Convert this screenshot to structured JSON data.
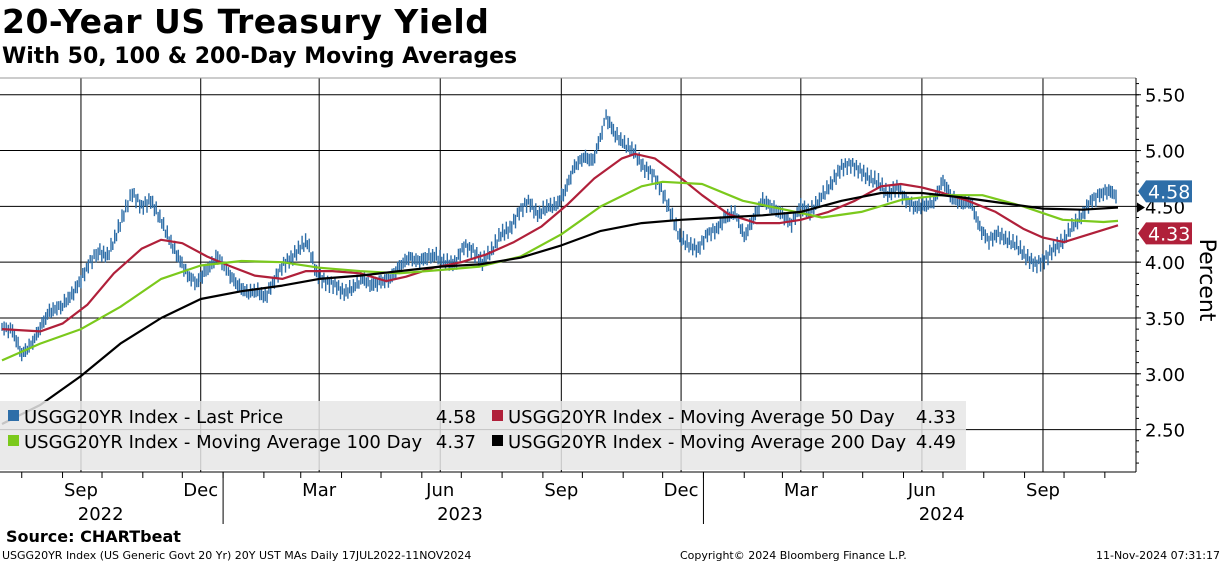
{
  "chart_data": {
    "type": "line",
    "title": "20-Year US Treasury Yield",
    "subtitle": "With 50, 100 & 200-Day Moving Averages",
    "ylabel": "Percent",
    "ylim": [
      2.12,
      5.65
    ],
    "yticks": [
      "2.50",
      "3.00",
      "3.50",
      "4.00",
      "4.50",
      "5.00",
      "5.50"
    ],
    "x_range": [
      "2022-07-17",
      "2024-11-11"
    ],
    "month_ticks": [
      {
        "label": "Sep",
        "date": "2022-09-15"
      },
      {
        "label": "Dec",
        "date": "2022-12-15"
      },
      {
        "label": "Mar",
        "date": "2023-03-15"
      },
      {
        "label": "Jun",
        "date": "2023-06-15"
      },
      {
        "label": "Sep",
        "date": "2023-09-15"
      },
      {
        "label": "Dec",
        "date": "2023-12-15"
      },
      {
        "label": "Mar",
        "date": "2024-03-15"
      },
      {
        "label": "Jun",
        "date": "2024-06-15"
      },
      {
        "label": "Sep",
        "date": "2024-09-15"
      }
    ],
    "years": [
      {
        "label": "2022",
        "date": "2022-09-30"
      },
      {
        "label": "2023",
        "date": "2023-06-30"
      },
      {
        "label": "2024",
        "date": "2024-06-30"
      }
    ],
    "year_boundaries": [
      "2023-01-01",
      "2024-01-01"
    ],
    "gridlines": true,
    "legend_position": "bottom-left",
    "series": [
      {
        "name": "USGG20YR Index - Last Price",
        "legend_value": "4.58",
        "color": "#2e6ea8",
        "style": "bar-high-low",
        "points": [
          [
            "2022-07-17",
            3.42
          ],
          [
            "2022-07-25",
            3.38
          ],
          [
            "2022-08-01",
            3.18
          ],
          [
            "2022-08-08",
            3.25
          ],
          [
            "2022-08-15",
            3.42
          ],
          [
            "2022-08-22",
            3.55
          ],
          [
            "2022-09-01",
            3.62
          ],
          [
            "2022-09-08",
            3.7
          ],
          [
            "2022-09-15",
            3.85
          ],
          [
            "2022-09-22",
            4.0
          ],
          [
            "2022-09-28",
            4.1
          ],
          [
            "2022-10-05",
            4.05
          ],
          [
            "2022-10-12",
            4.25
          ],
          [
            "2022-10-19",
            4.48
          ],
          [
            "2022-10-24",
            4.62
          ],
          [
            "2022-10-31",
            4.5
          ],
          [
            "2022-11-07",
            4.55
          ],
          [
            "2022-11-14",
            4.4
          ],
          [
            "2022-11-21",
            4.2
          ],
          [
            "2022-11-28",
            4.05
          ],
          [
            "2022-12-05",
            3.88
          ],
          [
            "2022-12-12",
            3.82
          ],
          [
            "2022-12-19",
            3.92
          ],
          [
            "2022-12-28",
            4.05
          ],
          [
            "2023-01-05",
            3.9
          ],
          [
            "2023-01-12",
            3.8
          ],
          [
            "2023-01-19",
            3.72
          ],
          [
            "2023-01-26",
            3.75
          ],
          [
            "2023-02-02",
            3.68
          ],
          [
            "2023-02-09",
            3.85
          ],
          [
            "2023-02-16",
            3.98
          ],
          [
            "2023-02-23",
            4.05
          ],
          [
            "2023-03-02",
            4.15
          ],
          [
            "2023-03-06",
            4.18
          ],
          [
            "2023-03-13",
            3.9
          ],
          [
            "2023-03-20",
            3.82
          ],
          [
            "2023-03-27",
            3.8
          ],
          [
            "2023-04-03",
            3.72
          ],
          [
            "2023-04-10",
            3.78
          ],
          [
            "2023-04-17",
            3.85
          ],
          [
            "2023-04-24",
            3.8
          ],
          [
            "2023-05-01",
            3.82
          ],
          [
            "2023-05-08",
            3.86
          ],
          [
            "2023-05-15",
            3.95
          ],
          [
            "2023-05-22",
            4.05
          ],
          [
            "2023-05-29",
            4.0
          ],
          [
            "2023-06-05",
            4.05
          ],
          [
            "2023-06-12",
            4.05
          ],
          [
            "2023-06-19",
            4.0
          ],
          [
            "2023-06-26",
            3.98
          ],
          [
            "2023-07-03",
            4.15
          ],
          [
            "2023-07-10",
            4.1
          ],
          [
            "2023-07-17",
            4.0
          ],
          [
            "2023-07-24",
            4.1
          ],
          [
            "2023-07-31",
            4.25
          ],
          [
            "2023-08-07",
            4.3
          ],
          [
            "2023-08-14",
            4.45
          ],
          [
            "2023-08-21",
            4.55
          ],
          [
            "2023-08-28",
            4.42
          ],
          [
            "2023-09-04",
            4.5
          ],
          [
            "2023-09-11",
            4.5
          ],
          [
            "2023-09-18",
            4.65
          ],
          [
            "2023-09-25",
            4.85
          ],
          [
            "2023-10-02",
            4.95
          ],
          [
            "2023-10-09",
            4.9
          ],
          [
            "2023-10-16",
            5.18
          ],
          [
            "2023-10-19",
            5.3
          ],
          [
            "2023-10-26",
            5.15
          ],
          [
            "2023-11-02",
            5.05
          ],
          [
            "2023-11-09",
            5.0
          ],
          [
            "2023-11-16",
            4.85
          ],
          [
            "2023-11-23",
            4.8
          ],
          [
            "2023-11-30",
            4.65
          ],
          [
            "2023-12-07",
            4.45
          ],
          [
            "2023-12-14",
            4.22
          ],
          [
            "2023-12-21",
            4.15
          ],
          [
            "2023-12-28",
            4.12
          ],
          [
            "2024-01-04",
            4.25
          ],
          [
            "2024-01-11",
            4.3
          ],
          [
            "2024-01-18",
            4.4
          ],
          [
            "2024-01-25",
            4.45
          ],
          [
            "2024-02-01",
            4.22
          ],
          [
            "2024-02-08",
            4.4
          ],
          [
            "2024-02-15",
            4.55
          ],
          [
            "2024-02-22",
            4.5
          ],
          [
            "2024-03-01",
            4.42
          ],
          [
            "2024-03-08",
            4.35
          ],
          [
            "2024-03-15",
            4.5
          ],
          [
            "2024-03-22",
            4.45
          ],
          [
            "2024-04-01",
            4.6
          ],
          [
            "2024-04-08",
            4.72
          ],
          [
            "2024-04-15",
            4.85
          ],
          [
            "2024-04-22",
            4.88
          ],
          [
            "2024-04-29",
            4.82
          ],
          [
            "2024-05-06",
            4.75
          ],
          [
            "2024-05-13",
            4.72
          ],
          [
            "2024-05-20",
            4.6
          ],
          [
            "2024-05-27",
            4.68
          ],
          [
            "2024-06-03",
            4.55
          ],
          [
            "2024-06-10",
            4.5
          ],
          [
            "2024-06-17",
            4.5
          ],
          [
            "2024-06-24",
            4.55
          ],
          [
            "2024-07-01",
            4.72
          ],
          [
            "2024-07-08",
            4.58
          ],
          [
            "2024-07-15",
            4.52
          ],
          [
            "2024-07-22",
            4.55
          ],
          [
            "2024-07-29",
            4.3
          ],
          [
            "2024-08-05",
            4.2
          ],
          [
            "2024-08-12",
            4.25
          ],
          [
            "2024-08-19",
            4.2
          ],
          [
            "2024-08-26",
            4.15
          ],
          [
            "2024-09-02",
            4.05
          ],
          [
            "2024-09-09",
            3.98
          ],
          [
            "2024-09-16",
            4.02
          ],
          [
            "2024-09-23",
            4.12
          ],
          [
            "2024-09-30",
            4.18
          ],
          [
            "2024-10-07",
            4.32
          ],
          [
            "2024-10-14",
            4.4
          ],
          [
            "2024-10-21",
            4.55
          ],
          [
            "2024-10-28",
            4.6
          ],
          [
            "2024-11-04",
            4.65
          ],
          [
            "2024-11-08",
            4.6
          ],
          [
            "2024-11-11",
            4.58
          ]
        ]
      },
      {
        "name": "USGG20YR Index - Moving Average 50 Day",
        "legend_value": "4.33",
        "color": "#b0203a",
        "points": [
          [
            "2022-07-17",
            3.4
          ],
          [
            "2022-08-15",
            3.38
          ],
          [
            "2022-09-01",
            3.45
          ],
          [
            "2022-09-20",
            3.62
          ],
          [
            "2022-10-10",
            3.9
          ],
          [
            "2022-10-31",
            4.12
          ],
          [
            "2022-11-15",
            4.2
          ],
          [
            "2022-12-01",
            4.17
          ],
          [
            "2022-12-20",
            4.05
          ],
          [
            "2023-01-05",
            3.97
          ],
          [
            "2023-01-25",
            3.88
          ],
          [
            "2023-02-15",
            3.85
          ],
          [
            "2023-03-05",
            3.92
          ],
          [
            "2023-03-25",
            3.92
          ],
          [
            "2023-04-15",
            3.9
          ],
          [
            "2023-05-05",
            3.83
          ],
          [
            "2023-05-20",
            3.87
          ],
          [
            "2023-06-10",
            3.95
          ],
          [
            "2023-07-01",
            4.0
          ],
          [
            "2023-07-20",
            4.07
          ],
          [
            "2023-08-10",
            4.18
          ],
          [
            "2023-08-31",
            4.32
          ],
          [
            "2023-09-20",
            4.52
          ],
          [
            "2023-10-10",
            4.75
          ],
          [
            "2023-10-31",
            4.93
          ],
          [
            "2023-11-10",
            4.97
          ],
          [
            "2023-11-25",
            4.93
          ],
          [
            "2023-12-10",
            4.8
          ],
          [
            "2023-12-31",
            4.6
          ],
          [
            "2024-01-20",
            4.43
          ],
          [
            "2024-02-10",
            4.35
          ],
          [
            "2024-02-28",
            4.35
          ],
          [
            "2024-03-15",
            4.38
          ],
          [
            "2024-04-05",
            4.45
          ],
          [
            "2024-04-25",
            4.55
          ],
          [
            "2024-05-15",
            4.68
          ],
          [
            "2024-05-30",
            4.7
          ],
          [
            "2024-06-15",
            4.67
          ],
          [
            "2024-07-01",
            4.62
          ],
          [
            "2024-07-20",
            4.55
          ],
          [
            "2024-08-10",
            4.45
          ],
          [
            "2024-08-31",
            4.3
          ],
          [
            "2024-09-15",
            4.22
          ],
          [
            "2024-10-01",
            4.18
          ],
          [
            "2024-10-20",
            4.25
          ],
          [
            "2024-11-11",
            4.33
          ]
        ]
      },
      {
        "name": "USGG20YR Index - Moving Average 100 Day",
        "legend_value": "4.37",
        "color": "#7bc91c",
        "points": [
          [
            "2022-07-17",
            3.12
          ],
          [
            "2022-08-15",
            3.27
          ],
          [
            "2022-09-15",
            3.4
          ],
          [
            "2022-10-15",
            3.6
          ],
          [
            "2022-11-15",
            3.85
          ],
          [
            "2022-12-15",
            3.97
          ],
          [
            "2023-01-15",
            4.01
          ],
          [
            "2023-02-15",
            4.0
          ],
          [
            "2023-03-15",
            3.95
          ],
          [
            "2023-04-15",
            3.92
          ],
          [
            "2023-05-15",
            3.9
          ],
          [
            "2023-06-15",
            3.93
          ],
          [
            "2023-07-15",
            3.96
          ],
          [
            "2023-08-15",
            4.05
          ],
          [
            "2023-09-15",
            4.25
          ],
          [
            "2023-10-15",
            4.5
          ],
          [
            "2023-11-15",
            4.68
          ],
          [
            "2023-12-01",
            4.72
          ],
          [
            "2023-12-31",
            4.7
          ],
          [
            "2024-01-31",
            4.55
          ],
          [
            "2024-02-28",
            4.48
          ],
          [
            "2024-03-31",
            4.4
          ],
          [
            "2024-04-30",
            4.45
          ],
          [
            "2024-05-31",
            4.56
          ],
          [
            "2024-06-30",
            4.6
          ],
          [
            "2024-07-31",
            4.6
          ],
          [
            "2024-08-31",
            4.5
          ],
          [
            "2024-09-30",
            4.38
          ],
          [
            "2024-10-31",
            4.36
          ],
          [
            "2024-11-11",
            4.37
          ]
        ]
      },
      {
        "name": "USGG20YR Index - Moving Average 200 Day",
        "legend_value": "4.49",
        "color": "#000000",
        "points": [
          [
            "2022-07-17",
            2.55
          ],
          [
            "2022-08-15",
            2.72
          ],
          [
            "2022-09-15",
            2.98
          ],
          [
            "2022-10-15",
            3.27
          ],
          [
            "2022-11-15",
            3.5
          ],
          [
            "2022-12-15",
            3.67
          ],
          [
            "2023-01-15",
            3.74
          ],
          [
            "2023-02-15",
            3.79
          ],
          [
            "2023-03-15",
            3.85
          ],
          [
            "2023-04-15",
            3.88
          ],
          [
            "2023-05-15",
            3.92
          ],
          [
            "2023-06-15",
            3.96
          ],
          [
            "2023-07-15",
            3.98
          ],
          [
            "2023-08-15",
            4.04
          ],
          [
            "2023-09-15",
            4.15
          ],
          [
            "2023-10-15",
            4.28
          ],
          [
            "2023-11-15",
            4.35
          ],
          [
            "2023-12-15",
            4.38
          ],
          [
            "2024-01-15",
            4.4
          ],
          [
            "2024-02-15",
            4.42
          ],
          [
            "2024-03-15",
            4.45
          ],
          [
            "2024-04-15",
            4.55
          ],
          [
            "2024-05-15",
            4.62
          ],
          [
            "2024-06-15",
            4.62
          ],
          [
            "2024-07-15",
            4.58
          ],
          [
            "2024-08-15",
            4.53
          ],
          [
            "2024-09-15",
            4.48
          ],
          [
            "2024-10-15",
            4.47
          ],
          [
            "2024-11-11",
            4.49
          ]
        ]
      }
    ],
    "price_tags": [
      {
        "value": 4.58,
        "label": "4.58",
        "color": "#2e6ea8"
      },
      {
        "value": 4.33,
        "label": "4.33",
        "color": "#b0203a"
      }
    ]
  },
  "source_label": "Source: CHARTbeat",
  "footer": {
    "left": "USGG20YR Index (US Generic Govt 20 Yr) 20Y UST MAs  Daily 17JUL2022-11NOV2024",
    "middle": "Copyright© 2024 Bloomberg Finance L.P.",
    "right": "11-Nov-2024 07:31:17"
  }
}
